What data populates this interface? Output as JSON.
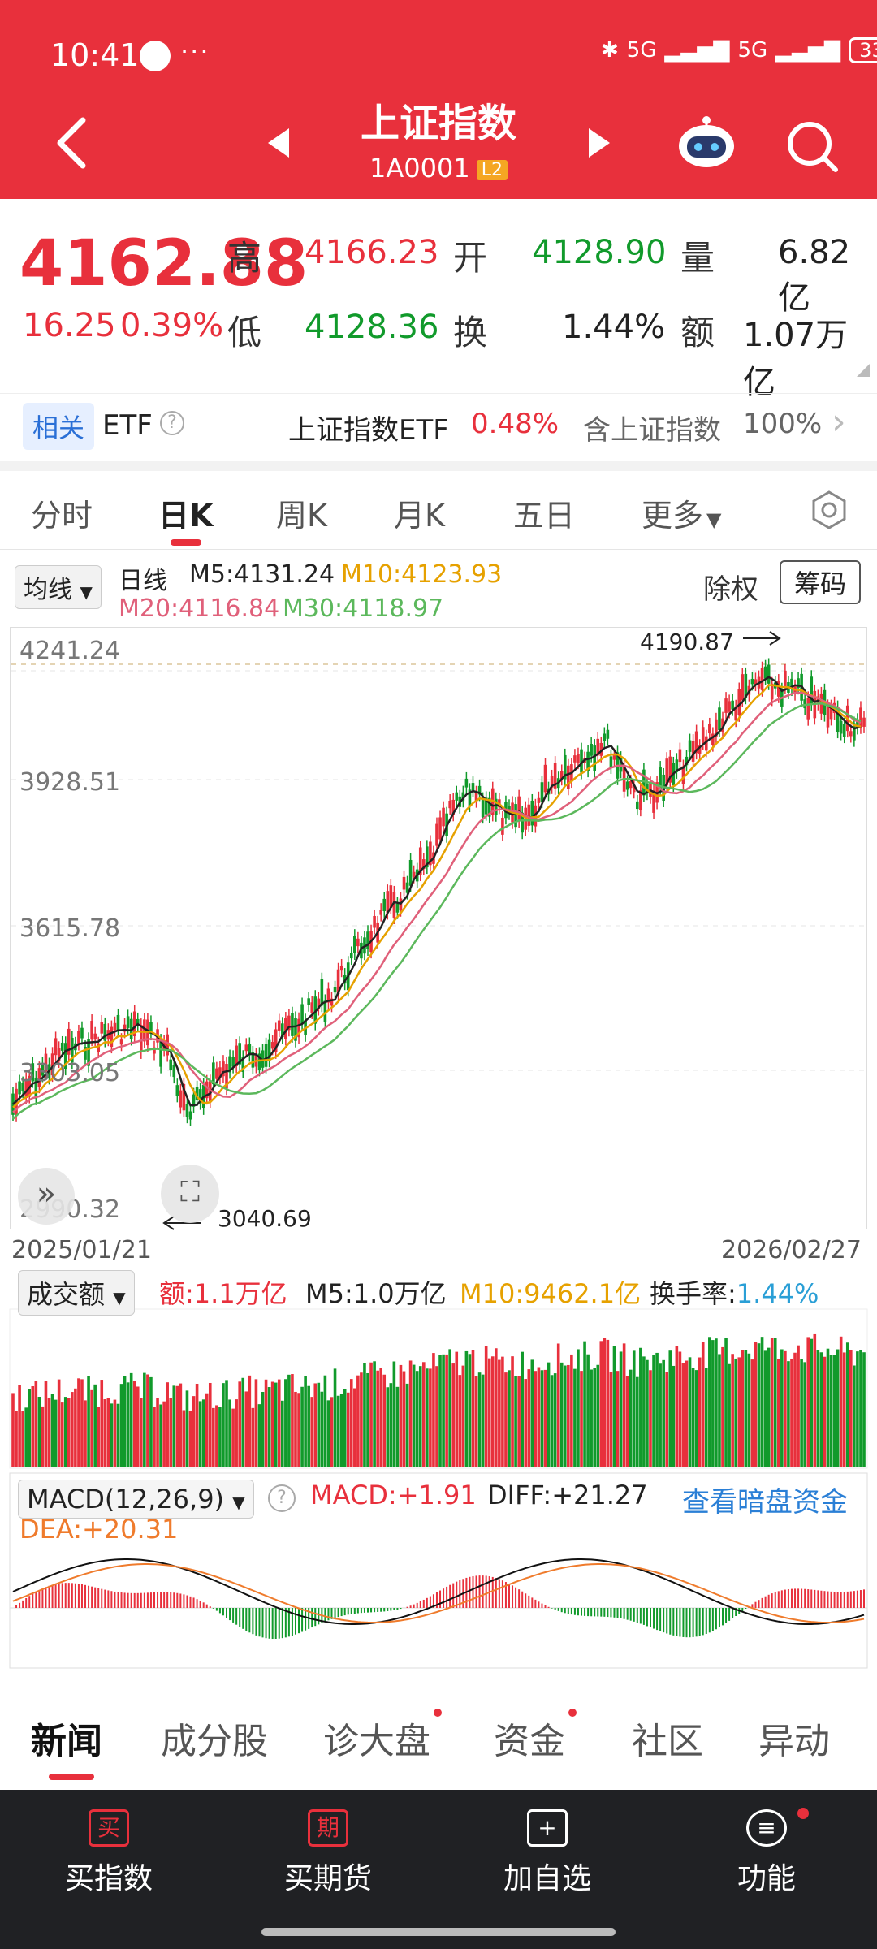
{
  "status": {
    "time": "10:41",
    "dots": "···",
    "net1": "5G",
    "net2": "5G",
    "battery": "33"
  },
  "header": {
    "title": "上证指数",
    "code": "1A0001",
    "badge": "L2"
  },
  "quote": {
    "price": "4162.88",
    "change": "16.25",
    "change_pct": "0.39%",
    "high_label": "高",
    "high": "4166.23",
    "low_label": "低",
    "low": "4128.36",
    "open_label": "开",
    "open": "4128.90",
    "turnover_label": "换",
    "turnover": "1.44%",
    "volume_label": "量",
    "volume": "6.82亿",
    "amount_label": "额",
    "amount": "1.07万亿"
  },
  "etf": {
    "badge": "相关",
    "label": "ETF",
    "help": "?",
    "name": "上证指数ETF",
    "pct": "0.48%",
    "contains": "含上证指数",
    "weight": "100%",
    "arrow": "›"
  },
  "tabs": [
    "分时",
    "日K",
    "周K",
    "月K",
    "五日",
    "更多"
  ],
  "ma": {
    "selector": "均线",
    "line_type": "日线",
    "m5": "M5:4131.24",
    "m10": "M10:4123.93",
    "m20": "M20:4116.84",
    "m30": "M30:4118.97",
    "exright": "除权",
    "chips": "筹码"
  },
  "chart": {
    "y_labels": [
      "4241.24",
      "3928.51",
      "3615.78",
      "3303.05",
      "2990.32"
    ],
    "high_mark": "4190.87",
    "low_mark": "3040.69",
    "start_date": "2025/01/21",
    "end_date": "2026/02/27"
  },
  "volume": {
    "selector": "成交额",
    "amount": "额:1.1万亿",
    "m5": "M5:1.0万亿",
    "m10": "M10:9462.1亿",
    "turnover_label": "换手率:",
    "turnover": "1.44%"
  },
  "macd": {
    "selector": "MACD(12,26,9)",
    "help": "?",
    "macd": "MACD:+1.91",
    "diff": "DIFF:+21.27",
    "link": "查看暗盘资金",
    "dea": "DEA:+20.31"
  },
  "news_tabs": [
    "新闻",
    "成分股",
    "诊大盘",
    "资金",
    "社区",
    "异动"
  ],
  "nav": [
    {
      "icon": "买",
      "label": "买指数"
    },
    {
      "icon": "期",
      "label": "买期货"
    },
    {
      "icon": "+",
      "label": "加自选"
    },
    {
      "icon": "≡",
      "label": "功能"
    }
  ],
  "colors": {
    "header": "#e8303c",
    "up": "#e8303c",
    "down": "#119a2b",
    "ma5": "#222222",
    "ma10": "#e6a100",
    "ma20": "#e0607a",
    "ma30": "#5cb85c"
  }
}
